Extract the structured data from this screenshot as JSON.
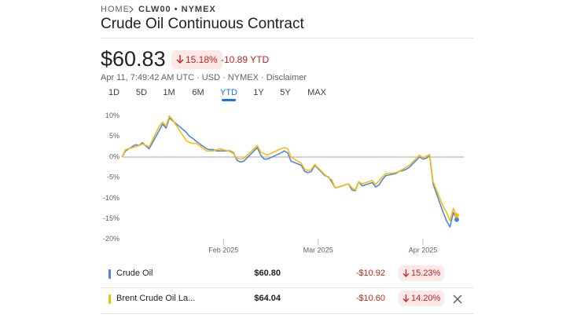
{
  "header": {
    "breadcrumb": [
      "HOME",
      "CLW00 • NYMEX"
    ],
    "title": "Crude Oil Continuous Contract",
    "price": "$60.83",
    "change_percent": "15.18%",
    "change_ytd": "-10.89 YTD",
    "meta": "Apr 11, 7:49:42 AM UTC · USD · NYMEX ·",
    "disclaimer": "Disclaimer"
  },
  "tabs": {
    "items": [
      "1D",
      "5D",
      "1M",
      "6M",
      "YTD",
      "1Y",
      "5Y",
      "MAX"
    ],
    "active": 4
  },
  "chart_data": {
    "type": "line",
    "x": [
      1,
      2,
      5,
      6,
      7,
      9,
      12,
      13,
      14,
      15,
      16,
      20,
      21,
      22,
      23,
      26,
      27,
      28,
      29,
      30,
      33,
      34,
      35,
      36,
      37,
      40,
      41,
      42,
      43,
      44,
      48,
      49,
      50,
      51,
      54,
      55,
      56,
      57,
      58,
      61,
      62,
      63,
      64,
      65,
      68,
      69,
      70,
      71,
      72,
      75,
      76,
      77,
      78,
      79,
      82,
      83,
      84,
      85,
      86,
      89,
      90,
      91,
      92,
      93,
      96,
      97,
      98,
      99,
      100
    ],
    "series": [
      {
        "name": "Crude Oil",
        "color": "#4a86e8",
        "values": [
          0,
          1.5,
          3.0,
          2.8,
          3.5,
          2.0,
          6.5,
          8.0,
          7.0,
          9.5,
          8.8,
          6.0,
          5.0,
          4.5,
          3.8,
          2.0,
          1.8,
          1.8,
          1.5,
          1.5,
          1.5,
          1.0,
          -0.8,
          -1.2,
          -1.0,
          1.5,
          2.3,
          0.5,
          -0.5,
          -0.5,
          1.0,
          1.5,
          1.0,
          -1.0,
          -2.0,
          -3.5,
          -3.8,
          -3.5,
          -2.0,
          -4.5,
          -4.8,
          -6.0,
          -7.5,
          -7.3,
          -6.5,
          -8.0,
          -8.2,
          -6.0,
          -7.0,
          -6.2,
          -7.3,
          -6.8,
          -5.5,
          -4.5,
          -4.0,
          -3.5,
          -3.3,
          -3.0,
          -2.5,
          0.0,
          -0.5,
          -0.3,
          0.3,
          -6.5,
          -13.5,
          -15.5,
          -17.0,
          -13.5,
          -15.23
        ]
      },
      {
        "name": "Brent Crude Oil La...",
        "color": "#fbbc04",
        "values": [
          0,
          1.8,
          2.5,
          2.8,
          3.2,
          2.5,
          7.5,
          8.5,
          7.5,
          10.0,
          9.0,
          4.0,
          3.5,
          3.3,
          3.3,
          1.5,
          1.5,
          1.5,
          1.8,
          2.0,
          1.3,
          0.8,
          -0.3,
          -0.5,
          -0.3,
          2.0,
          2.8,
          1.2,
          0.8,
          0.5,
          2.0,
          2.3,
          2.0,
          0.0,
          -1.5,
          -3.0,
          -3.3,
          -3.0,
          -1.8,
          -4.3,
          -5.0,
          -5.5,
          -7.5,
          -7.3,
          -6.5,
          -7.5,
          -8.0,
          -6.0,
          -6.5,
          -5.7,
          -6.7,
          -5.8,
          -4.8,
          -4.0,
          -3.8,
          -3.5,
          -3.0,
          -2.5,
          -2.0,
          0.5,
          -0.3,
          0.2,
          0.6,
          -6.0,
          -12.0,
          -13.5,
          -15.5,
          -12.5,
          -14.2
        ]
      }
    ],
    "xlim": [
      0,
      102
    ],
    "xticks": [
      {
        "value": 31,
        "label": "Feb 2025"
      },
      {
        "value": 59,
        "label": "Mar 2025"
      },
      {
        "value": 90,
        "label": "Apr 2025"
      }
    ],
    "ylim": [
      -21,
      11
    ],
    "yticks": [
      {
        "value": 10,
        "label": "10%"
      },
      {
        "value": 5,
        "label": "5%"
      },
      {
        "value": 0,
        "label": "0%"
      },
      {
        "value": -5,
        "label": "-5%"
      },
      {
        "value": -10,
        "label": "-10%"
      },
      {
        "value": -15,
        "label": "-15%"
      },
      {
        "value": -20,
        "label": "-20%"
      }
    ],
    "baseline": 0
  },
  "comparison": {
    "rows": [
      {
        "price": "$60.80",
        "change": "-$10.92",
        "change_percent": "15.23%"
      },
      {
        "price": "$64.04",
        "change": "-$10.60",
        "change_percent": "14.20%"
      }
    ]
  }
}
